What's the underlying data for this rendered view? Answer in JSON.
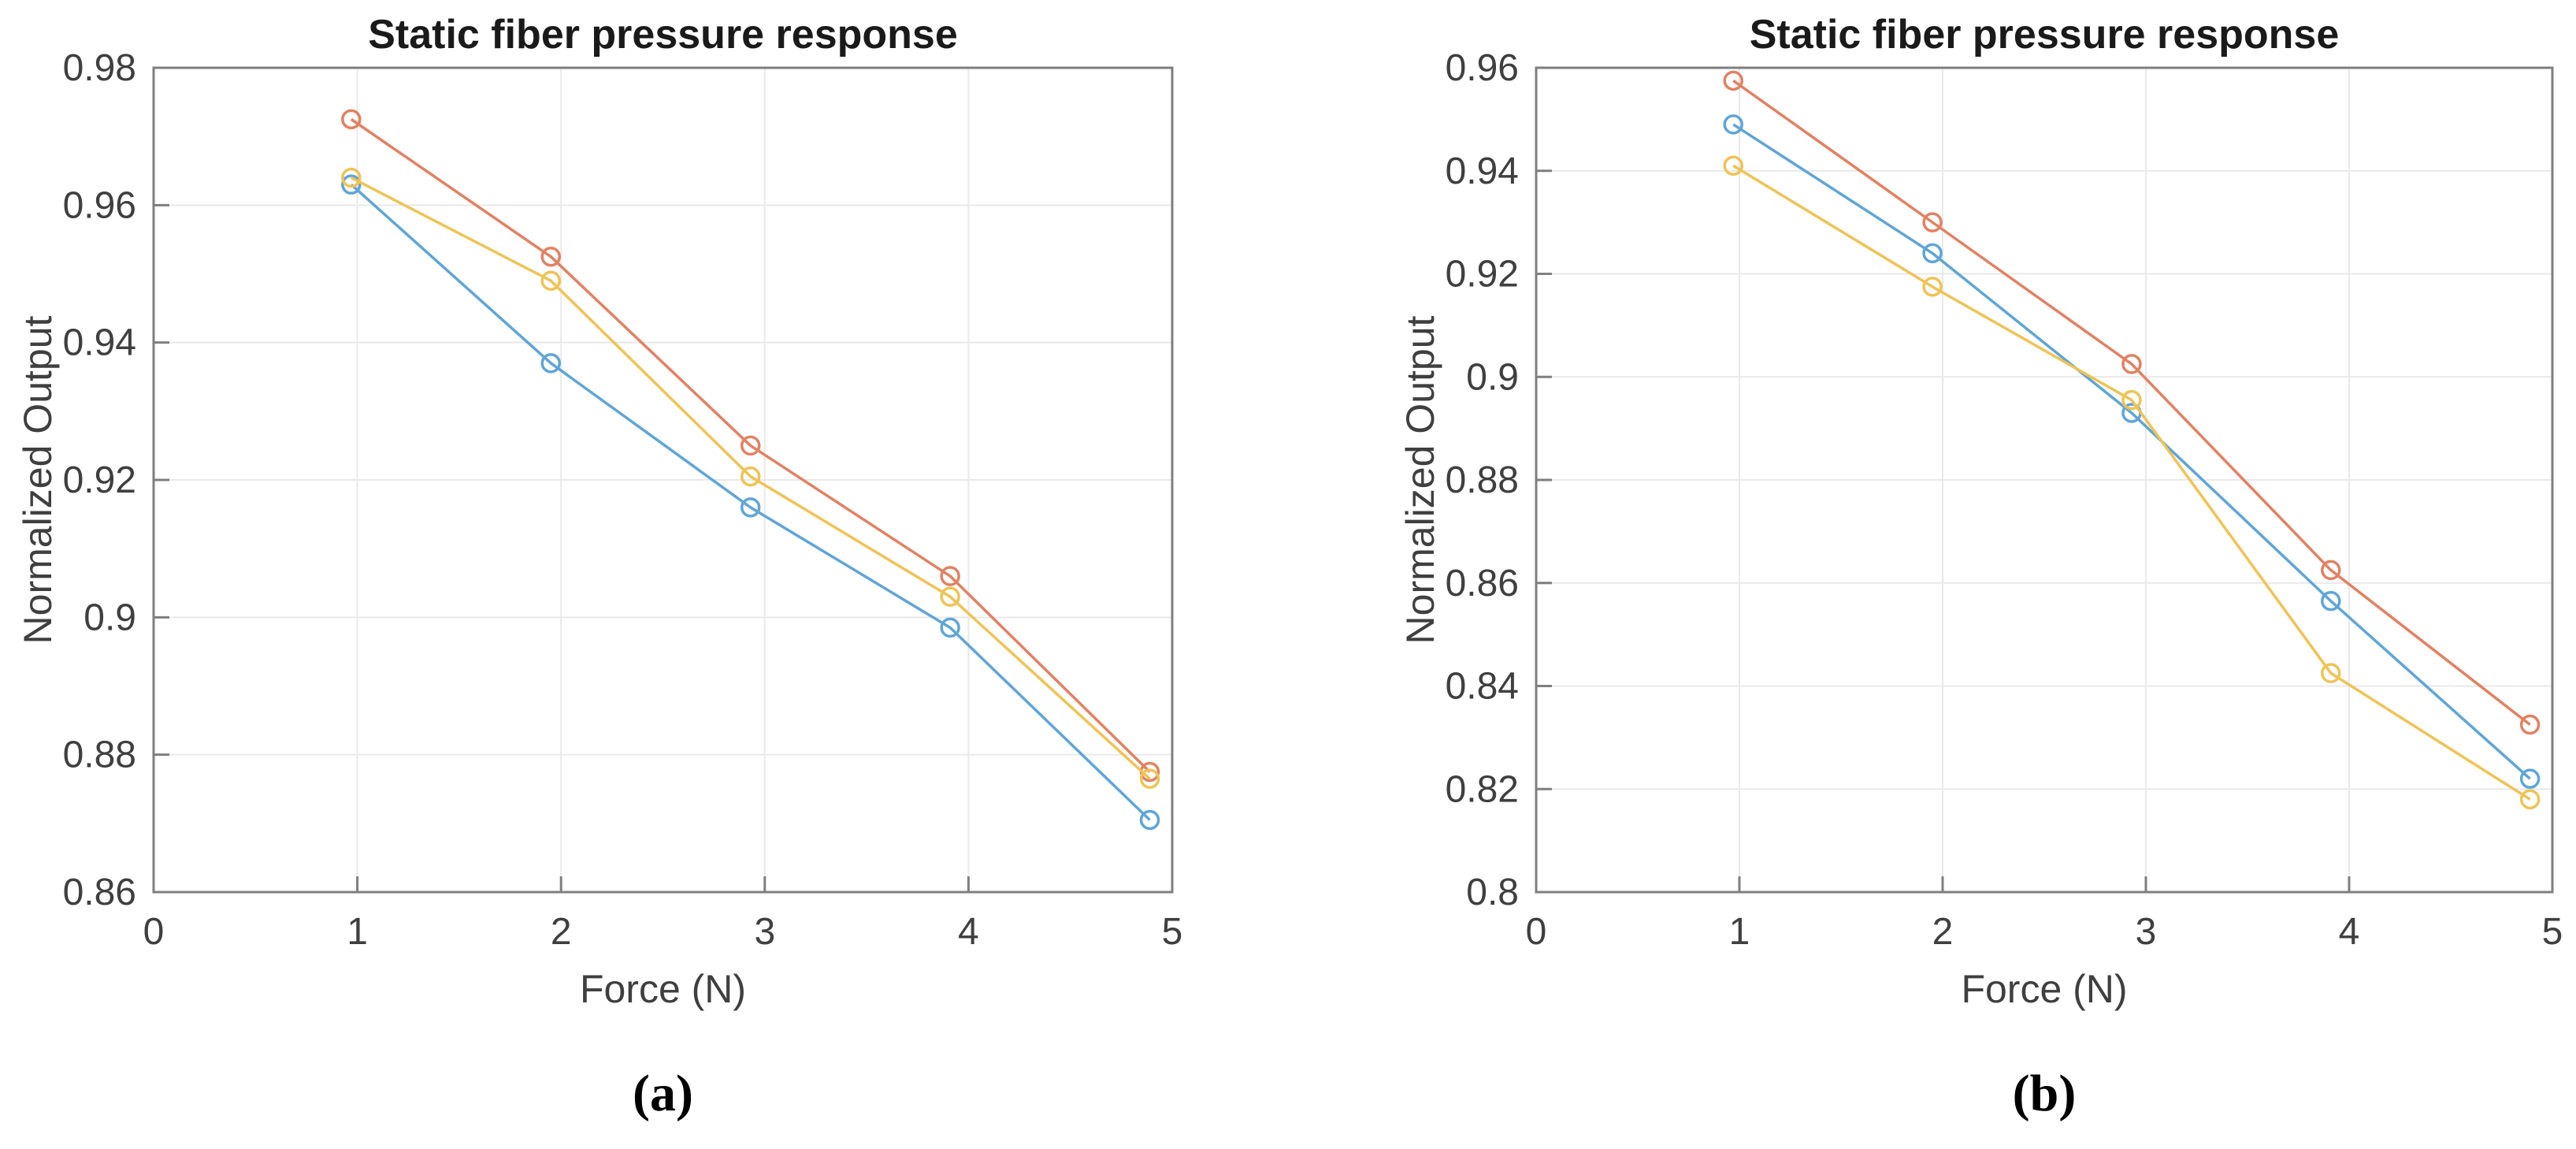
{
  "styles": {
    "background": "#ffffff",
    "grid_color": "#e9e9e9",
    "axis_color": "#7f7f7f",
    "tick_label_color": "#3f3f3f",
    "title_color": "#1a1a1a"
  },
  "chart_data": [
    {
      "id": "a",
      "type": "line",
      "title": "Static fiber pressure response",
      "xlabel": "Force (N)",
      "ylabel": "Normalized Output",
      "caption": "(a)",
      "grid": true,
      "legend": "none",
      "xlim": [
        0,
        5
      ],
      "ylim": [
        0.86,
        0.98
      ],
      "xticks": [
        0,
        1,
        2,
        3,
        4,
        5
      ],
      "xtick_labels": [
        "0",
        "1",
        "2",
        "3",
        "4",
        "5"
      ],
      "yticks": [
        0.86,
        0.88,
        0.9,
        0.92,
        0.94,
        0.96,
        0.98
      ],
      "ytick_labels": [
        "0.86",
        "0.88",
        "0.9",
        "0.92",
        "0.94",
        "0.96",
        "0.98"
      ],
      "x": [
        0.97,
        1.95,
        2.93,
        3.91,
        4.89
      ],
      "series": [
        {
          "name": "blue-trial",
          "color": "#5fa5d8",
          "marker": "circle",
          "values": [
            0.963,
            0.937,
            0.916,
            0.8985,
            0.8705
          ]
        },
        {
          "name": "orange-trial",
          "color": "#e28163",
          "marker": "circle",
          "values": [
            0.9725,
            0.9525,
            0.925,
            0.906,
            0.8775
          ]
        },
        {
          "name": "yellow-trial",
          "color": "#efc355",
          "marker": "circle",
          "values": [
            0.964,
            0.949,
            0.9205,
            0.903,
            0.8765
          ]
        }
      ]
    },
    {
      "id": "b",
      "type": "line",
      "title": "Static fiber pressure response",
      "xlabel": "Force (N)",
      "ylabel": "Normalized Output",
      "caption": "(b)",
      "grid": true,
      "legend": "none",
      "xlim": [
        0,
        5
      ],
      "ylim": [
        0.8,
        0.96
      ],
      "xticks": [
        0,
        1,
        2,
        3,
        4,
        5
      ],
      "xtick_labels": [
        "0",
        "1",
        "2",
        "3",
        "4",
        "5"
      ],
      "yticks": [
        0.8,
        0.82,
        0.84,
        0.86,
        0.88,
        0.9,
        0.92,
        0.94,
        0.96
      ],
      "ytick_labels": [
        "0.8",
        "0.82",
        "0.84",
        "0.86",
        "0.88",
        "0.9",
        "0.92",
        "0.94",
        "0.96"
      ],
      "x": [
        0.97,
        1.95,
        2.93,
        3.91,
        4.89
      ],
      "series": [
        {
          "name": "blue-trial",
          "color": "#5fa5d8",
          "marker": "circle",
          "values": [
            0.949,
            0.924,
            0.893,
            0.8565,
            0.822
          ]
        },
        {
          "name": "orange-trial",
          "color": "#e28163",
          "marker": "circle",
          "values": [
            0.9575,
            0.93,
            0.9025,
            0.8625,
            0.8325
          ]
        },
        {
          "name": "yellow-trial",
          "color": "#efc355",
          "marker": "circle",
          "values": [
            0.941,
            0.9175,
            0.8955,
            0.8425,
            0.818
          ]
        }
      ]
    }
  ]
}
